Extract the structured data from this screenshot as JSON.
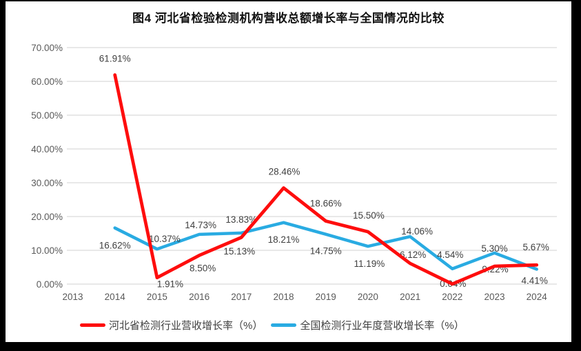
{
  "title": "图4 河北省检验检测机构营收总额增长率与全国情况的比较",
  "chart_data": {
    "type": "line",
    "x": [
      "2013",
      "2014",
      "2015",
      "2016",
      "2017",
      "2018",
      "2019",
      "2020",
      "2021",
      "2022",
      "2023",
      "2024"
    ],
    "y_ticks": [
      "0.00%",
      "10.00%",
      "20.00%",
      "30.00%",
      "40.00%",
      "50.00%",
      "60.00%",
      "70.00%"
    ],
    "ylim": [
      0,
      70
    ],
    "grid": true,
    "grid_color": "#d9d9d9",
    "tick_color": "#595959",
    "label_color": "#3f3f3f",
    "legend_position": "bottom",
    "series": [
      {
        "name": "河北省检测行业营收增长率（%）",
        "color": "#fe0d0d",
        "start_index": 1,
        "values": [
          61.91,
          1.91,
          8.5,
          13.83,
          28.46,
          18.66,
          15.5,
          6.12,
          0.04,
          5.3,
          5.67
        ],
        "labels": [
          "61.91%",
          "1.91%",
          "8.50%",
          "13.83%",
          "28.46%",
          "18.66%",
          "15.50%",
          "6.12%",
          "0.04%",
          "5.30%",
          "5.67%"
        ],
        "label_offsets": [
          [
            0,
            -24
          ],
          [
            19,
            9
          ],
          [
            5,
            18
          ],
          [
            0,
            -26
          ],
          [
            1,
            -24
          ],
          [
            0,
            -26
          ],
          [
            1,
            -24
          ],
          [
            4,
            -13
          ],
          [
            1,
            -1
          ],
          [
            0,
            -26
          ],
          [
            -1,
            -26
          ]
        ]
      },
      {
        "name": "全国检测行业年度营收增长率（%）",
        "color": "#29abe2",
        "start_index": 1,
        "values": [
          16.62,
          10.37,
          14.73,
          15.13,
          18.21,
          14.75,
          11.19,
          14.06,
          4.54,
          9.22,
          4.41
        ],
        "labels": [
          "16.62%",
          "10.37%",
          "14.73%",
          "15.13%",
          "18.21%",
          "14.75%",
          "11.19%",
          "14.06%",
          "4.54%",
          "9.22%",
          "4.41%"
        ],
        "label_offsets": [
          [
            0,
            25
          ],
          [
            11,
            -15
          ],
          [
            2,
            -14
          ],
          [
            -3,
            26
          ],
          [
            0,
            24
          ],
          [
            0,
            24
          ],
          [
            2,
            25
          ],
          [
            10,
            -8
          ],
          [
            -3,
            -21
          ],
          [
            1,
            23
          ],
          [
            -3,
            16
          ]
        ]
      }
    ]
  },
  "legend": {
    "items": [
      {
        "label": "河北省检测行业营收增长率（%）",
        "color": "#fe0d0d"
      },
      {
        "label": "全国检测行业年度营收增长率（%）",
        "color": "#29abe2"
      }
    ]
  }
}
